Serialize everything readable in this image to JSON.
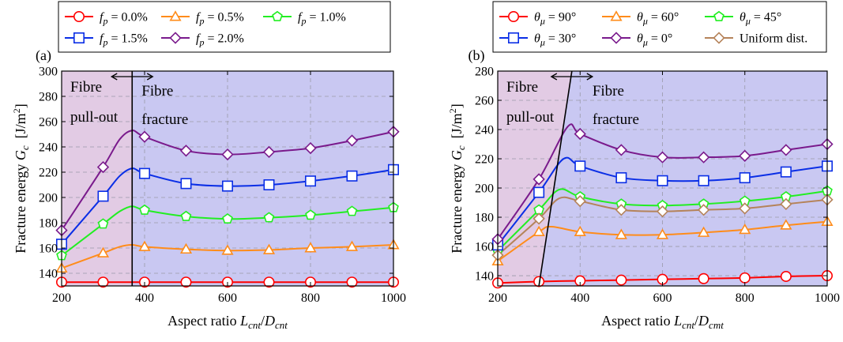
{
  "chart_data": [
    {
      "panel_label": "(a)",
      "type": "line",
      "xlabel": "Aspect ratio L_cnt/D_cnt",
      "xlabel_parts": {
        "pre": "Aspect ratio ",
        "num": "L",
        "num_sub": "cnt",
        "slash": "/",
        "den": "D",
        "den_sub": "cnt"
      },
      "ylabel": "Fracture energy G_c [J/m²]",
      "ylabel_parts": {
        "pre": "Fracture energy ",
        "sym": "G",
        "sub": "c",
        "unit": "[J/m",
        "sup": "2",
        "close": "]"
      },
      "xlim": [
        200,
        1000
      ],
      "ylim": [
        130,
        300
      ],
      "xticks": [
        200,
        400,
        600,
        800,
        1000
      ],
      "yticks": [
        140,
        160,
        180,
        200,
        220,
        240,
        260,
        280,
        300
      ],
      "grid": true,
      "legend_placement": "top",
      "regions": [
        {
          "name": "pull-out",
          "lines": [
            "Fibre",
            "pull-out"
          ],
          "color": "#e2cbe4"
        },
        {
          "name": "fracture",
          "lines": [
            "Fibre",
            "fracture"
          ],
          "color": "#c9c8f2"
        }
      ],
      "transition": {
        "x_bottom": 370,
        "x_top": 370
      },
      "x": [
        200,
        300,
        400,
        500,
        600,
        700,
        800,
        900,
        1000
      ],
      "series": [
        {
          "name": "f_p = 0.0%",
          "sym": "f",
          "sub": "p",
          "rhs": " = 0.0%",
          "color": "#ff0000",
          "marker": "circle",
          "values": [
            133,
            133,
            133,
            133,
            133,
            133,
            133,
            133,
            133
          ],
          "curve": [
            [
              200,
              133
            ],
            [
              1000,
              133
            ]
          ]
        },
        {
          "name": "f_p = 0.5%",
          "sym": "f",
          "sub": "p",
          "rhs": " = 0.5%",
          "color": "#ff8c1a",
          "marker": "triangle",
          "values": [
            144,
            156,
            161,
            159,
            158,
            158.5,
            160,
            161,
            162.5
          ],
          "curve": [
            [
              200,
              144
            ],
            [
              300,
              156
            ],
            [
              340,
              161
            ],
            [
              370,
              162.5
            ],
            [
              400,
              161
            ],
            [
              500,
              159
            ],
            [
              600,
              158
            ],
            [
              700,
              158.5
            ],
            [
              800,
              160
            ],
            [
              900,
              161
            ],
            [
              1000,
              162.5
            ]
          ]
        },
        {
          "name": "f_p = 1.0%",
          "sym": "f",
          "sub": "p",
          "rhs": " = 1.0%",
          "color": "#22ee22",
          "marker": "pentagon",
          "values": [
            154,
            179,
            190,
            185,
            183,
            184,
            186,
            189,
            192
          ],
          "curve": [
            [
              200,
              154
            ],
            [
              300,
              179
            ],
            [
              340,
              189
            ],
            [
              370,
              193
            ],
            [
              400,
              190
            ],
            [
              500,
              185
            ],
            [
              600,
              183
            ],
            [
              700,
              184
            ],
            [
              800,
              186
            ],
            [
              900,
              189
            ],
            [
              1000,
              192
            ]
          ]
        },
        {
          "name": "f_p = 1.5%",
          "sym": "f",
          "sub": "p",
          "rhs": " = 1.5%",
          "color": "#0a2ee6",
          "marker": "square",
          "values": [
            163,
            201,
            219,
            211,
            209,
            210,
            213,
            217,
            222
          ],
          "curve": [
            [
              200,
              163
            ],
            [
              300,
              201
            ],
            [
              340,
              217
            ],
            [
              370,
              223
            ],
            [
              400,
              219
            ],
            [
              500,
              211
            ],
            [
              600,
              209
            ],
            [
              700,
              210
            ],
            [
              800,
              213
            ],
            [
              900,
              217
            ],
            [
              1000,
              222
            ]
          ]
        },
        {
          "name": "f_p = 2.0%",
          "sym": "f",
          "sub": "p",
          "rhs": " = 2.0%",
          "color": "#7a1a8c",
          "marker": "diamond",
          "values": [
            174,
            224,
            248,
            237,
            234,
            236,
            239,
            245,
            252
          ],
          "curve": [
            [
              200,
              174
            ],
            [
              300,
              224
            ],
            [
              340,
              246
            ],
            [
              370,
              253
            ],
            [
              400,
              248
            ],
            [
              500,
              237
            ],
            [
              600,
              234
            ],
            [
              700,
              236
            ],
            [
              800,
              239
            ],
            [
              900,
              245
            ],
            [
              1000,
              252
            ]
          ]
        }
      ]
    },
    {
      "panel_label": "(b)",
      "type": "line",
      "xlabel": "Aspect ratio L_cnt/D_cmt",
      "xlabel_parts": {
        "pre": "Aspect ratio ",
        "num": "L",
        "num_sub": "cnt",
        "slash": "/",
        "den": "D",
        "den_sub": "cmt"
      },
      "ylabel": "Fracture energy G_c [J/m²]",
      "ylabel_parts": {
        "pre": "Fracture energy ",
        "sym": "G",
        "sub": "c",
        "unit": "[J/m",
        "sup": "2",
        "close": "]"
      },
      "xlim": [
        200,
        1000
      ],
      "ylim": [
        133,
        280
      ],
      "xticks": [
        200,
        400,
        600,
        800,
        1000
      ],
      "yticks": [
        140,
        160,
        180,
        200,
        220,
        240,
        260,
        280
      ],
      "grid": true,
      "legend_placement": "top",
      "regions": [
        {
          "name": "pull-out",
          "lines": [
            "Fibre",
            "pull-out"
          ],
          "color": "#e2cbe4"
        },
        {
          "name": "fracture",
          "lines": [
            "Fibre",
            "fracture"
          ],
          "color": "#c9c8f2"
        }
      ],
      "transition": {
        "x_bottom": 300,
        "x_top": 380
      },
      "x": [
        200,
        300,
        400,
        500,
        600,
        700,
        800,
        900,
        1000
      ],
      "series": [
        {
          "name": "θ_μ = 90°",
          "sym": "θ",
          "sub": "μ",
          "rhs": " = 90°",
          "color": "#ff0000",
          "marker": "circle",
          "values": [
            135,
            136,
            136.5,
            137,
            137.5,
            138,
            138.5,
            139.5,
            140
          ],
          "curve": [
            [
              200,
              135
            ],
            [
              300,
              136
            ],
            [
              400,
              136.5
            ],
            [
              500,
              137
            ],
            [
              600,
              137.5
            ],
            [
              700,
              138
            ],
            [
              800,
              138.5
            ],
            [
              900,
              139.5
            ],
            [
              1000,
              140
            ]
          ]
        },
        {
          "name": "θ_μ = 60°",
          "sym": "θ",
          "sub": "μ",
          "rhs": " = 60°",
          "color": "#ff8c1a",
          "marker": "triangle",
          "values": [
            150,
            170,
            170,
            168,
            168,
            169.5,
            171.5,
            174.5,
            177
          ],
          "curve": [
            [
              200,
              150
            ],
            [
              300,
              170
            ],
            [
              330,
              173.5
            ],
            [
              400,
              170
            ],
            [
              500,
              168
            ],
            [
              600,
              168
            ],
            [
              700,
              169.5
            ],
            [
              800,
              171.5
            ],
            [
              900,
              174.5
            ],
            [
              1000,
              177
            ]
          ]
        },
        {
          "name": "θ_μ = 45°",
          "sym": "θ",
          "sub": "μ",
          "rhs": " = 45°",
          "color": "#22ee22",
          "marker": "pentagon",
          "values": [
            157,
            185,
            194,
            189,
            188,
            189,
            191,
            194,
            198
          ],
          "curve": [
            [
              200,
              157
            ],
            [
              300,
              185
            ],
            [
              350,
              199
            ],
            [
              400,
              194
            ],
            [
              500,
              189
            ],
            [
              600,
              188
            ],
            [
              700,
              189
            ],
            [
              800,
              191
            ],
            [
              900,
              194
            ],
            [
              1000,
              198
            ]
          ]
        },
        {
          "name": "θ_μ = 30°",
          "sym": "θ",
          "sub": "μ",
          "rhs": " = 30°",
          "color": "#0a2ee6",
          "marker": "square",
          "values": [
            161,
            197,
            215,
            207,
            205,
            205,
            207,
            211,
            215
          ],
          "curve": [
            [
              200,
              161
            ],
            [
              300,
              197
            ],
            [
              360,
              220
            ],
            [
              400,
              215
            ],
            [
              500,
              207
            ],
            [
              600,
              205
            ],
            [
              700,
              205
            ],
            [
              800,
              207
            ],
            [
              900,
              211
            ],
            [
              1000,
              215
            ]
          ]
        },
        {
          "name": "θ_μ = 0°",
          "sym": "θ",
          "sub": "μ",
          "rhs": " = 0°",
          "color": "#7a1a8c",
          "marker": "diamond",
          "values": [
            165,
            206,
            237,
            226,
            221,
            221,
            222,
            226,
            230
          ],
          "curve": [
            [
              200,
              165
            ],
            [
              300,
              206
            ],
            [
              370,
              242
            ],
            [
              400,
              237
            ],
            [
              500,
              226
            ],
            [
              600,
              221
            ],
            [
              700,
              221
            ],
            [
              800,
              222
            ],
            [
              900,
              226
            ],
            [
              1000,
              230
            ]
          ]
        },
        {
          "name": "Uniform dist.",
          "text": "Uniform dist.",
          "color": "#b5835a",
          "marker": "diamond",
          "values": [
            154,
            179,
            191,
            185,
            184,
            185,
            186,
            189,
            192
          ],
          "curve": [
            [
              200,
              154
            ],
            [
              300,
              179
            ],
            [
              350,
              193
            ],
            [
              400,
              191
            ],
            [
              500,
              185
            ],
            [
              600,
              184
            ],
            [
              700,
              185
            ],
            [
              800,
              186
            ],
            [
              900,
              189
            ],
            [
              1000,
              192
            ]
          ]
        }
      ]
    }
  ]
}
